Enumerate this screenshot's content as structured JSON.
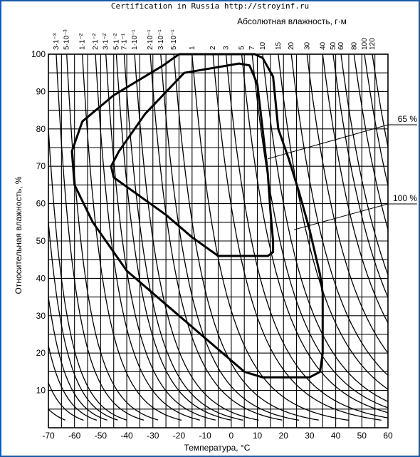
{
  "watermark": "Certification in Russia http://stroyinf.ru",
  "chart_data": {
    "type": "line",
    "xlabel": "Температура, °C",
    "ylabel": "Относительная влажность, %",
    "top_axis_label": "Абсолютная влажность, г·м",
    "xlim": [
      -70,
      60
    ],
    "ylim": [
      0,
      100
    ],
    "x_ticks": [
      -70,
      -60,
      -50,
      -40,
      -30,
      -20,
      -10,
      0,
      10,
      20,
      30,
      40,
      50,
      60
    ],
    "y_ticks": [
      10,
      20,
      30,
      40,
      50,
      60,
      70,
      80,
      90,
      100
    ],
    "grid": true,
    "top_axis_ticks": [
      {
        "label": "3·1⁻³",
        "x": -67
      },
      {
        "label": "5·10⁻³",
        "x": -63
      },
      {
        "label": "1·1⁻²",
        "x": -57
      },
      {
        "label": "2·1⁻²",
        "x": -52
      },
      {
        "label": "3·1⁻²",
        "x": -48
      },
      {
        "label": "5·1⁻²",
        "x": -44
      },
      {
        "label": "7·1⁻¹",
        "x": -41
      },
      {
        "label": "1·10⁻¹",
        "x": -37
      },
      {
        "label": "2·10⁻¹",
        "x": -31
      },
      {
        "label": "3·10⁻¹",
        "x": -27
      },
      {
        "label": "5·10⁻¹",
        "x": -22
      },
      {
        "label": "1",
        "x": -15
      },
      {
        "label": "2",
        "x": -7
      },
      {
        "label": "3",
        "x": -2
      },
      {
        "label": "5",
        "x": 4
      },
      {
        "label": "7",
        "x": 8
      },
      {
        "label": "10",
        "x": 12
      },
      {
        "label": "15",
        "x": 18
      },
      {
        "label": "20",
        "x": 23
      },
      {
        "label": "30",
        "x": 29
      },
      {
        "label": "40",
        "x": 35
      },
      {
        "label": "50",
        "x": 39
      },
      {
        "label": "60",
        "x": 42
      },
      {
        "label": "80",
        "x": 47
      },
      {
        "label": "100",
        "x": 51
      },
      {
        "label": "120",
        "x": 54
      }
    ],
    "series": [
      {
        "name": "65 %",
        "x": [
          -18,
          3,
          7,
          10,
          14,
          15,
          16,
          16,
          14,
          12,
          -5,
          -15,
          -25,
          -45,
          -46,
          -43,
          -33,
          -18
        ],
        "y": [
          95,
          97.5,
          97,
          92,
          68,
          58,
          50,
          47,
          46,
          46,
          46,
          51,
          57,
          67,
          70,
          74,
          84,
          95
        ]
      },
      {
        "name": "100 %",
        "x": [
          -26,
          -20,
          9,
          12,
          16,
          18,
          22,
          26,
          30,
          34,
          35,
          35,
          34,
          30,
          12,
          5,
          -20,
          -40,
          -53,
          -60,
          -61,
          -57,
          -45,
          -26
        ],
        "y": [
          97,
          100,
          100,
          99,
          94,
          80,
          72,
          63,
          53,
          41,
          36,
          20,
          15,
          13.5,
          13.5,
          15,
          30,
          42,
          55,
          65,
          74,
          82,
          89,
          97
        ]
      }
    ],
    "annotations": [
      {
        "text": "65 %",
        "x": 60,
        "y": 82
      },
      {
        "text": "100 %",
        "x": 60,
        "y": 63
      }
    ]
  }
}
